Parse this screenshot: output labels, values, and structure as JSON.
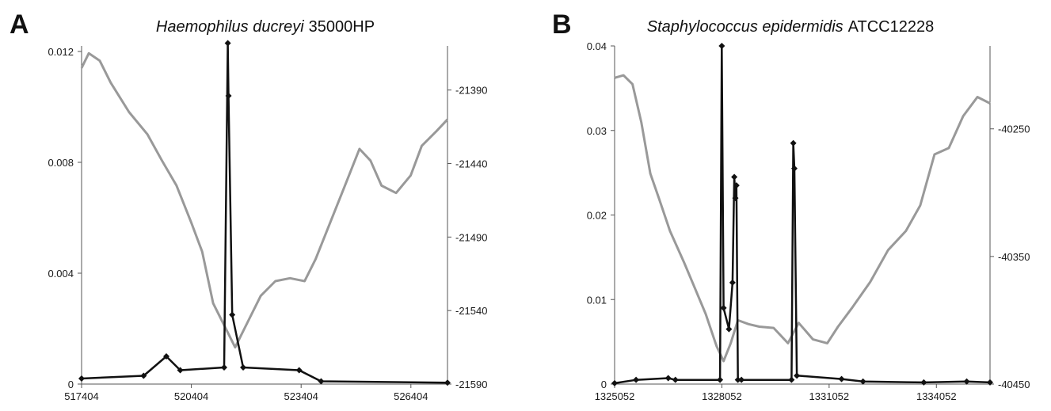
{
  "chart_data": [
    {
      "panel_label": "A",
      "title_italic": "Haemophilus ducreyi",
      "title_rest": "35000HP",
      "type": "line",
      "xlim": [
        517404,
        527404
      ],
      "x_ticks": [
        "517404",
        "520404",
        "523404",
        "526404"
      ],
      "x_tick_values": [
        517404,
        520404,
        523404,
        526404
      ],
      "ylim_left": [
        0,
        0.0122
      ],
      "y_left_ticks": [
        "0",
        "0.004",
        "0.008",
        "0.012"
      ],
      "y_left_tick_values": [
        0,
        0.004,
        0.008,
        0.012
      ],
      "ylim_right": [
        -21590,
        -21360
      ],
      "y_right_ticks": [
        "-21390",
        "-21440",
        "-21490",
        "-21540",
        "-21590"
      ],
      "y_right_tick_values": [
        -21390,
        -21440,
        -21490,
        -21540,
        -21590
      ],
      "series": [
        {
          "axis": "left",
          "color": "#111111",
          "markers": true,
          "x": [
            517404,
            519100,
            519720,
            520100,
            521300,
            521400,
            521420,
            521520,
            521820,
            523350,
            523950,
            527404
          ],
          "y": [
            0.0002,
            0.0003,
            0.001,
            0.0005,
            0.0006,
            0.0123,
            0.0104,
            0.0025,
            0.0006,
            0.0005,
            0.0001,
            5e-05
          ]
        },
        {
          "axis": "right",
          "color": "#999999",
          "markers": false,
          "x": [
            517404,
            517600,
            517900,
            518200,
            518700,
            519200,
            519600,
            520000,
            520400,
            520700,
            521000,
            521300,
            521600,
            521800,
            522000,
            522300,
            522700,
            523100,
            523500,
            523800,
            524200,
            524600,
            525000,
            525300,
            525600,
            526000,
            526400,
            526700,
            527100,
            527404
          ],
          "y": [
            -21375,
            -21365,
            -21370,
            -21385,
            -21405,
            -21420,
            -21438,
            -21455,
            -21480,
            -21500,
            -21535,
            -21550,
            -21565,
            -21555,
            -21545,
            -21530,
            -21520,
            -21518,
            -21520,
            -21505,
            -21480,
            -21455,
            -21430,
            -21438,
            -21455,
            -21460,
            -21448,
            -21428,
            -21418,
            -21410
          ]
        }
      ]
    },
    {
      "panel_label": "B",
      "title_italic": "Staphylococcus epidermidis",
      "title_rest": "ATCC12228",
      "type": "line",
      "xlim": [
        1325052,
        1335552
      ],
      "x_ticks": [
        "1325052",
        "1328052",
        "1331052",
        "1334052"
      ],
      "x_tick_values": [
        1325052,
        1328052,
        1331052,
        1334052
      ],
      "ylim_left": [
        0,
        0.04
      ],
      "y_left_ticks": [
        "0",
        "0.01",
        "0.02",
        "0.03",
        "0.04"
      ],
      "y_left_tick_values": [
        0,
        0.01,
        0.02,
        0.03,
        0.04
      ],
      "ylim_right": [
        -40450,
        -40185
      ],
      "y_right_ticks": [
        "-40250",
        "-40350",
        "-40450"
      ],
      "y_right_tick_values": [
        -40250,
        -40350,
        -40450
      ],
      "series": [
        {
          "axis": "left",
          "color": "#111111",
          "markers": true,
          "x": [
            1325052,
            1325652,
            1326552,
            1326752,
            1328000,
            1328050,
            1328100,
            1328250,
            1328350,
            1328400,
            1328430,
            1328460,
            1328500,
            1328600,
            1330000,
            1330050,
            1330080,
            1330150,
            1331400,
            1332000,
            1333700,
            1334900,
            1335552
          ],
          "y": [
            0.0001,
            0.0005,
            0.0007,
            0.0005,
            0.0005,
            0.04,
            0.009,
            0.0065,
            0.012,
            0.0245,
            0.022,
            0.0235,
            0.0005,
            0.0005,
            0.0005,
            0.0285,
            0.0255,
            0.001,
            0.0006,
            0.0003,
            0.0002,
            0.0003,
            0.0002
          ]
        },
        {
          "axis": "right",
          "color": "#999999",
          "markers": false,
          "x": [
            1325052,
            1325300,
            1325552,
            1325800,
            1326050,
            1326300,
            1326600,
            1327000,
            1327300,
            1327600,
            1327900,
            1328100,
            1328300,
            1328500,
            1328800,
            1329100,
            1329500,
            1329900,
            1330200,
            1330600,
            1331000,
            1331300,
            1331700,
            1332200,
            1332700,
            1333200,
            1333600,
            1334000,
            1334400,
            1334800,
            1335200,
            1335552
          ],
          "y": [
            -40210,
            -40208,
            -40215,
            -40245,
            -40285,
            -40305,
            -40330,
            -40355,
            -40375,
            -40395,
            -40420,
            -40432,
            -40418,
            -40400,
            -40403,
            -40405,
            -40406,
            -40418,
            -40402,
            -40415,
            -40418,
            -40405,
            -40390,
            -40370,
            -40345,
            -40330,
            -40310,
            -40270,
            -40265,
            -40240,
            -40225,
            -40230
          ]
        }
      ]
    }
  ]
}
